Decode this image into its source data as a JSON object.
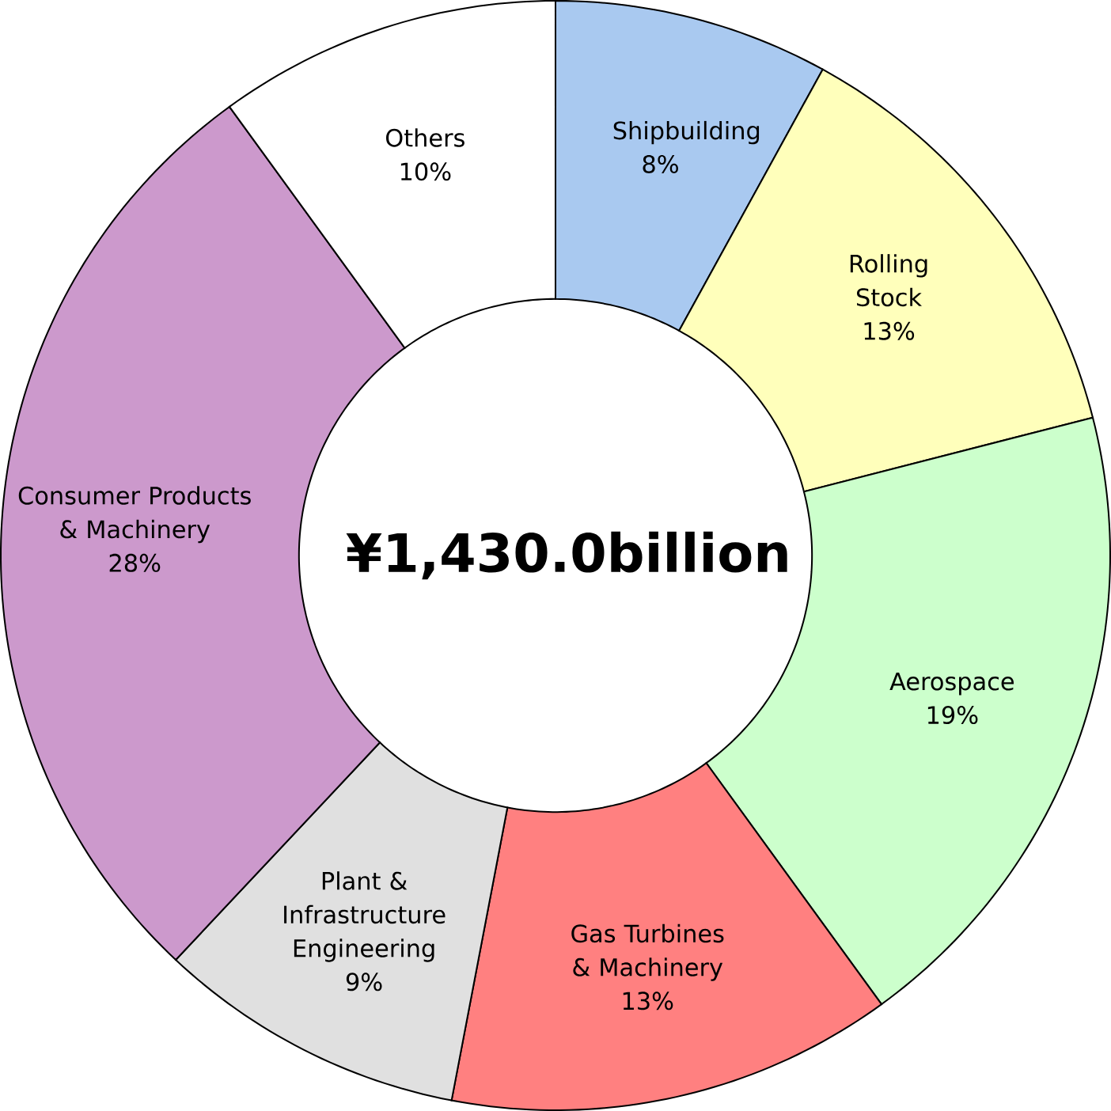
{
  "chart_data": {
    "type": "donut",
    "categories": [
      "Shipbuilding",
      "Rolling Stock",
      "Aerospace",
      "Gas Turbines & Machinery",
      "Plant & Infrastructure Engineering",
      "Consumer Products & Machinery",
      "Others"
    ],
    "values": [
      8,
      13,
      19,
      13,
      9,
      28,
      10
    ],
    "value_labels": [
      "8%",
      "13%",
      "19%",
      "13%",
      "9%",
      "28%",
      "10%"
    ],
    "colors": [
      "#a9c9f0",
      "#ffffbb",
      "#ccffcc",
      "#ff8080",
      "#e0e0e0",
      "#cc99cc",
      "#ffffff"
    ],
    "annotations": [
      "¥1,430.0billion"
    ]
  }
}
